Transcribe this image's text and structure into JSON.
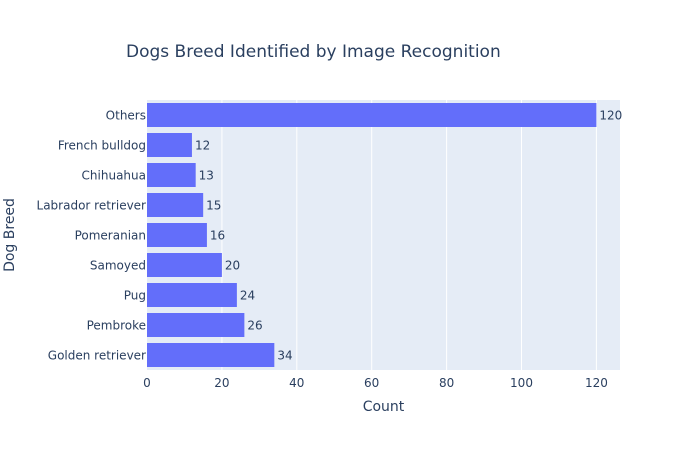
{
  "chart_data": {
    "type": "bar",
    "orientation": "horizontal",
    "title": "Dogs Breed Identified by Image Recognition",
    "xlabel": "Count",
    "ylabel": "Dog Breed",
    "categories": [
      "Golden retriever",
      "Pembroke",
      "Pug",
      "Samoyed",
      "Pomeranian",
      "Labrador retriever",
      "Chihuahua",
      "French bulldog",
      "Others"
    ],
    "values": [
      34,
      26,
      24,
      20,
      16,
      15,
      13,
      12,
      120
    ],
    "xlim": [
      0,
      126.3
    ],
    "xticks": [
      0,
      20,
      40,
      60,
      80,
      100,
      120
    ],
    "grid": true,
    "legend": "none"
  },
  "colors": {
    "bar": "#636efa",
    "plot_bg": "#e5ecf6",
    "grid": "#ffffff",
    "text": "#2a3f5f"
  }
}
